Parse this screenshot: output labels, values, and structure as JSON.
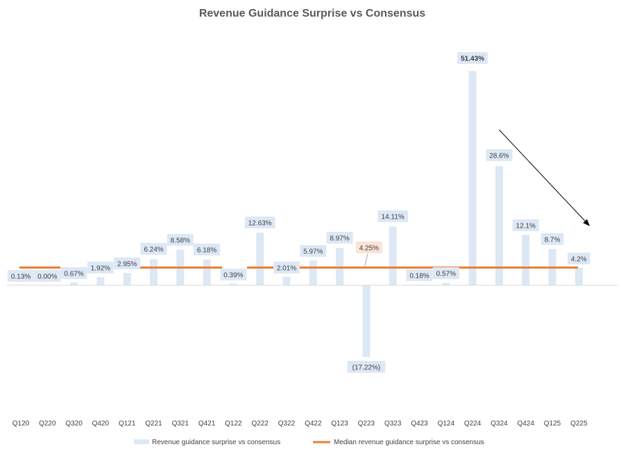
{
  "chart_data": {
    "type": "bar",
    "title": "Revenue Guidance Surprise vs Consensus",
    "categories": [
      "Q120",
      "Q220",
      "Q320",
      "Q420",
      "Q121",
      "Q221",
      "Q321",
      "Q421",
      "Q122",
      "Q222",
      "Q322",
      "Q422",
      "Q123",
      "Q223",
      "Q323",
      "Q423",
      "Q124",
      "Q224",
      "Q324",
      "Q424",
      "Q125",
      "Q225"
    ],
    "series": [
      {
        "name": "Revenue guidance surprise vs consensus",
        "type": "bar",
        "color": "#dde8f5",
        "values": [
          0.13,
          0.0,
          0.67,
          1.92,
          2.95,
          6.24,
          8.58,
          6.18,
          0.39,
          12.63,
          2.01,
          5.97,
          8.97,
          -17.22,
          14.11,
          0.18,
          0.57,
          51.43,
          28.6,
          12.1,
          8.7,
          4.2
        ],
        "labels": [
          "0.13%",
          "0.00%",
          "0.67%",
          "1.92%",
          "2.95%",
          "6.24%",
          "8.58%",
          "6.18%",
          "0.39%",
          "12.63%",
          "2.01%",
          "5.97%",
          "8.97%",
          "(17.22%)",
          "14.11%",
          "0.18%",
          "0.57%",
          "51.43%",
          "28.6%",
          "12.1%",
          "8.7%",
          "4.2%"
        ]
      },
      {
        "name": "Median revenue guidance surprise vs consensus",
        "type": "line",
        "color": "#ed7d31",
        "values": [
          4.25,
          4.25,
          4.25,
          4.25,
          4.25,
          4.25,
          4.25,
          4.25,
          4.25,
          4.25,
          4.25,
          4.25,
          4.25,
          4.25,
          4.25,
          4.25,
          4.25,
          4.25,
          4.25,
          4.25,
          4.25,
          4.25
        ],
        "label": "4.25%"
      }
    ],
    "ylim": [
      -30,
      55
    ],
    "xlabel": "",
    "ylabel": "",
    "grid": false,
    "legend_position": "bottom",
    "annotations": [
      {
        "type": "arrow",
        "description": "downward trend arrow",
        "from_category": "Q324",
        "to_category": "Q225"
      }
    ],
    "colors": {
      "label_bg": "#dde8f5",
      "median_label_bg": "#fbe3d6",
      "axis": "#d9d9d9",
      "text": "#404040",
      "title": "#595959"
    }
  }
}
